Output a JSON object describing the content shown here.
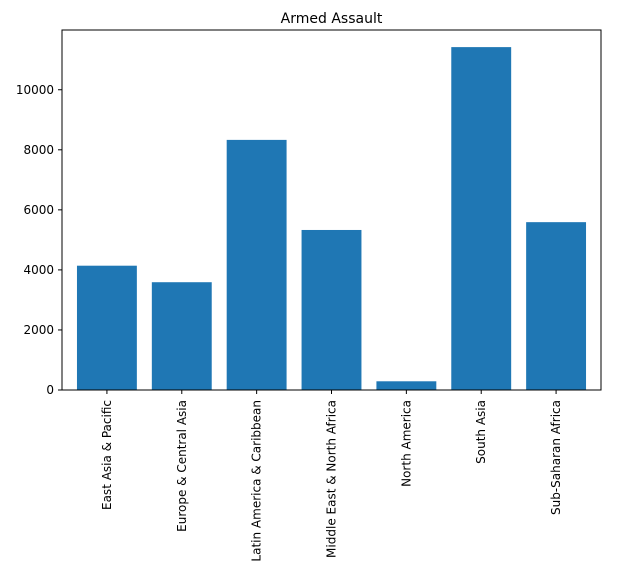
{
  "chart_data": {
    "type": "bar",
    "title": "Armed Assault",
    "xlabel": "",
    "ylabel": "",
    "categories": [
      "East Asia & Pacific",
      "Europe & Central Asia",
      "Latin America & Caribbean",
      "Middle East & North Africa",
      "North America",
      "South Asia",
      "Sub-Saharan Africa"
    ],
    "values": [
      4140,
      3590,
      8330,
      5330,
      290,
      11420,
      5590
    ],
    "ylim": [
      0,
      11990
    ],
    "yticks": [
      0,
      2000,
      4000,
      6000,
      8000,
      10000
    ],
    "ytick_labels": [
      "0",
      "2000",
      "4000",
      "6000",
      "8000",
      "10000"
    ],
    "bar_color": "#1f77b4",
    "grid": false,
    "legend": "none"
  }
}
